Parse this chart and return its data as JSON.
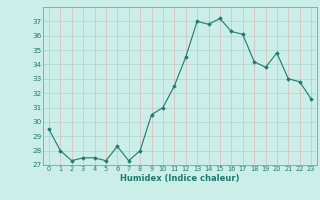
{
  "x": [
    0,
    1,
    2,
    3,
    4,
    5,
    6,
    7,
    8,
    9,
    10,
    11,
    12,
    13,
    14,
    15,
    16,
    17,
    18,
    19,
    20,
    21,
    22,
    23
  ],
  "y": [
    29.5,
    28.0,
    27.3,
    27.5,
    27.5,
    27.3,
    28.3,
    27.3,
    28.0,
    30.5,
    31.0,
    32.5,
    34.5,
    37.0,
    36.8,
    37.2,
    36.3,
    36.1,
    34.2,
    33.8,
    34.8,
    33.0,
    32.8,
    31.6
  ],
  "line_color": "#1c7a6e",
  "marker_color": "#1c7a6e",
  "bg_color": "#cceee8",
  "grid_color_h": "#aad4cc",
  "grid_color_v": "#ddb8b8",
  "xlabel": "Humidex (Indice chaleur)",
  "ylim": [
    27,
    38
  ],
  "xlim": [
    -0.5,
    23.5
  ],
  "yticks": [
    27,
    28,
    29,
    30,
    31,
    32,
    33,
    34,
    35,
    36,
    37
  ],
  "xticks": [
    0,
    1,
    2,
    3,
    4,
    5,
    6,
    7,
    8,
    9,
    10,
    11,
    12,
    13,
    14,
    15,
    16,
    17,
    18,
    19,
    20,
    21,
    22,
    23
  ],
  "tick_color": "#1c7a6e",
  "label_color": "#1c7a6e"
}
